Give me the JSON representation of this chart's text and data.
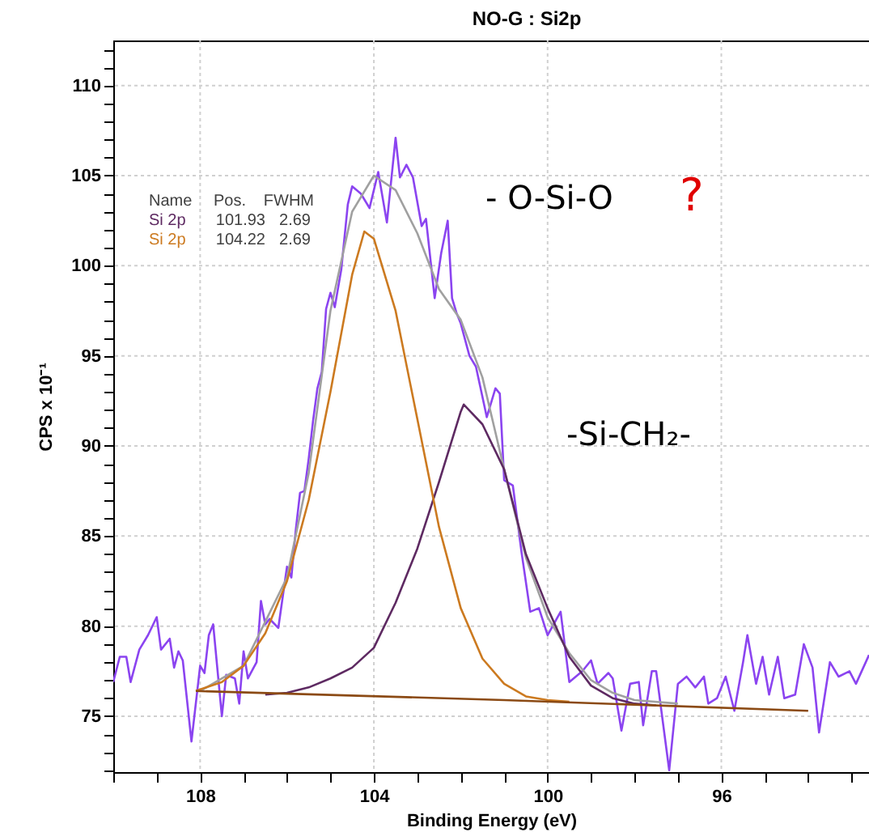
{
  "chart_data": {
    "type": "line",
    "title": "NO-G : Si2p",
    "xlabel": "Binding Energy (eV)",
    "ylabel": "CPS x 10⁻¹",
    "xlim": [
      110,
      92.6
    ],
    "ylim": [
      71.9,
      112.5
    ],
    "xticks": [
      {
        "value": 110,
        "label": null
      },
      {
        "value": 109,
        "label": null
      },
      108,
      {
        "value": 107,
        "label": null
      },
      {
        "value": 106,
        "label": null
      },
      {
        "value": 105,
        "label": null
      },
      104,
      {
        "value": 103,
        "label": null
      },
      {
        "value": 102,
        "label": null
      },
      {
        "value": 101,
        "label": null
      },
      100,
      {
        "value": 99,
        "label": null
      },
      {
        "value": 98,
        "label": null
      },
      {
        "value": 97,
        "label": null
      },
      96,
      {
        "value": 95,
        "label": null
      },
      {
        "value": 94,
        "label": null
      },
      {
        "value": 93,
        "label": null
      }
    ],
    "yticks": [
      {
        "value": 72,
        "label": null
      },
      {
        "value": 73,
        "label": null
      },
      {
        "value": 74,
        "label": null
      },
      75,
      {
        "value": 76,
        "label": null
      },
      {
        "value": 77,
        "label": null
      },
      {
        "value": 78,
        "label": null
      },
      {
        "value": 79,
        "label": null
      },
      80,
      {
        "value": 81,
        "label": null
      },
      {
        "value": 82,
        "label": null
      },
      {
        "value": 83,
        "label": null
      },
      {
        "value": 84,
        "label": null
      },
      85,
      {
        "value": 86,
        "label": null
      },
      {
        "value": 87,
        "label": null
      },
      {
        "value": 88,
        "label": null
      },
      {
        "value": 89,
        "label": null
      },
      90,
      {
        "value": 91,
        "label": null
      },
      {
        "value": 92,
        "label": null
      },
      {
        "value": 93,
        "label": null
      },
      {
        "value": 94,
        "label": null
      },
      95,
      {
        "value": 96,
        "label": null
      },
      {
        "value": 97,
        "label": null
      },
      {
        "value": 98,
        "label": null
      },
      {
        "value": 99,
        "label": null
      },
      100,
      {
        "value": 101,
        "label": null
      },
      {
        "value": 102,
        "label": null
      },
      {
        "value": 103,
        "label": null
      },
      {
        "value": 104,
        "label": null
      },
      105,
      {
        "value": 106,
        "label": null
      },
      {
        "value": 107,
        "label": null
      },
      {
        "value": 108,
        "label": null
      },
      {
        "value": 109,
        "label": null
      },
      110,
      {
        "value": 111,
        "label": null
      },
      {
        "value": 112,
        "label": null
      }
    ],
    "grid": true,
    "legend": "top left",
    "line_style": "solid",
    "marker": "none",
    "series": [
      {
        "color": "#8b44f0",
        "x": [
          110.0,
          109.85,
          109.7,
          109.6,
          109.4,
          109.2,
          109.0,
          108.9,
          108.7,
          108.6,
          108.5,
          108.4,
          108.2,
          108.0,
          107.9,
          107.8,
          107.7,
          107.5,
          107.4,
          107.2,
          107.1,
          107.0,
          106.9,
          106.7,
          106.6,
          106.5,
          106.4,
          106.2,
          106.1,
          106.0,
          105.9,
          105.8,
          105.7,
          105.6,
          105.5,
          105.4,
          105.3,
          105.2,
          105.1,
          105.0,
          104.9,
          104.75,
          104.6,
          104.5,
          104.3,
          104.1,
          103.9,
          103.7,
          103.5,
          103.4,
          103.25,
          103.1,
          102.9,
          102.8,
          102.6,
          102.45,
          102.3,
          102.2,
          102.1,
          102.0,
          101.8,
          101.65,
          101.4,
          101.2,
          101.1,
          101.0,
          100.8,
          100.6,
          100.4,
          100.2,
          100.0,
          99.7,
          99.5,
          99.2,
          99.0,
          98.85,
          98.6,
          98.5,
          98.3,
          98.1,
          97.9,
          97.8,
          97.6,
          97.5,
          97.2,
          97.0,
          96.8,
          96.6,
          96.4,
          96.3,
          96.1,
          95.9,
          95.7,
          95.5,
          95.4,
          95.2,
          95.05,
          94.9,
          94.7,
          94.55,
          94.3,
          94.1,
          93.9,
          93.75,
          93.5,
          93.3,
          93.05,
          92.9,
          92.6
        ],
        "values": [
          76.9,
          78.3,
          78.3,
          76.9,
          78.7,
          79.5,
          80.5,
          78.7,
          79.3,
          77.7,
          78.6,
          78.1,
          73.6,
          77.8,
          77.4,
          79.5,
          80.1,
          75.0,
          77.3,
          77.1,
          75.7,
          78.6,
          77.1,
          78.0,
          81.4,
          80.1,
          80.4,
          79.9,
          81.6,
          83.3,
          82.7,
          85.3,
          87.4,
          87.5,
          89.3,
          91.4,
          93.2,
          94.1,
          97.6,
          98.5,
          97.7,
          99.8,
          103.4,
          104.4,
          104.0,
          103.2,
          105.2,
          102.4,
          107.1,
          104.9,
          105.6,
          104.9,
          102.2,
          102.6,
          98.2,
          100.7,
          102.5,
          98.2,
          97.4,
          96.8,
          95.0,
          94.4,
          91.6,
          93.2,
          92.9,
          88.1,
          87.8,
          84.1,
          80.8,
          81.0,
          79.5,
          80.8,
          76.9,
          77.5,
          78.1,
          76.8,
          77.4,
          77.1,
          74.2,
          76.8,
          76.9,
          74.5,
          77.5,
          77.5,
          72.0,
          76.8,
          77.2,
          76.6,
          77.2,
          75.7,
          76.0,
          77.2,
          75.3,
          78.0,
          79.5,
          76.8,
          78.3,
          76.2,
          78.3,
          76.0,
          76.2,
          79.0,
          77.7,
          74.1,
          78.0,
          77.2,
          77.5,
          76.8,
          78.4
        ]
      },
      {
        "color": "#a0a0a0",
        "x": [
          108.0,
          107.0,
          106.0,
          105.5,
          105.0,
          104.5,
          104.0,
          103.5,
          103.0,
          102.5,
          102.0,
          101.5,
          101.0,
          100.5,
          100.0,
          99.5,
          99.0,
          98.5,
          98.0,
          97.0
        ],
        "values": [
          76.4,
          77.8,
          82.7,
          88.5,
          97.5,
          103.0,
          105.0,
          104.2,
          101.8,
          98.7,
          97.0,
          93.8,
          88.7,
          83.8,
          80.5,
          78.5,
          77.0,
          76.3,
          75.9,
          75.7
        ]
      },
      {
        "name": "Si 2p",
        "color": "#5e2a62",
        "x": [
          106.5,
          106.0,
          105.5,
          105.0,
          104.5,
          104.0,
          103.5,
          103.0,
          102.5,
          102.0,
          101.93,
          101.5,
          101.0,
          100.5,
          100.0,
          99.5,
          99.0,
          98.5,
          98.0,
          97.5
        ],
        "values": [
          76.2,
          76.3,
          76.6,
          77.1,
          77.7,
          78.8,
          81.3,
          84.3,
          88.0,
          91.9,
          92.3,
          91.2,
          88.7,
          84.0,
          81.0,
          78.3,
          76.7,
          76.0,
          75.7,
          75.6
        ]
      },
      {
        "name": "Si 2p",
        "color": "#cc7a20",
        "x": [
          108.1,
          107.5,
          107.0,
          106.5,
          106.0,
          105.5,
          105.0,
          104.5,
          104.22,
          104.0,
          103.5,
          103.0,
          102.5,
          102.0,
          101.5,
          101.0,
          100.5,
          100.0,
          99.5
        ],
        "values": [
          76.4,
          76.9,
          77.8,
          79.6,
          82.5,
          87.0,
          93.0,
          99.5,
          101.9,
          101.5,
          97.5,
          91.5,
          85.5,
          81.0,
          78.2,
          76.8,
          76.1,
          75.9,
          75.8
        ]
      },
      {
        "color": "#8b4a14",
        "x": [
          108.1,
          101.0,
          94.0
        ],
        "values": [
          76.4,
          75.9,
          75.3
        ]
      }
    ],
    "annotations": [
      "Name",
      "Pos.",
      "FWHM",
      "101.93",
      "2.69",
      "104.22",
      "2.69",
      "- O-Si-O",
      "?",
      "-Si-CH₂-"
    ]
  }
}
